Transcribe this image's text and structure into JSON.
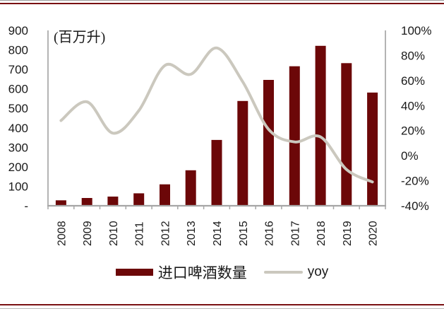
{
  "figure": {
    "unit_label": "(百万升)",
    "colors": {
      "bar": "#6C0708",
      "line": "#CBC8BE",
      "axis": "#A6A6A6",
      "text": "#1A1A1A",
      "rule": "#7A1113"
    }
  },
  "legend": {
    "items": [
      {
        "label": "进口啤酒数量",
        "type": "bar"
      },
      {
        "label": "yoy",
        "type": "line"
      }
    ]
  },
  "chart_data": {
    "type": "bar+line combo",
    "title": "",
    "categories": [
      "2008",
      "2009",
      "2010",
      "2011",
      "2012",
      "2013",
      "2014",
      "2015",
      "2016",
      "2017",
      "2018",
      "2019",
      "2020"
    ],
    "series": [
      {
        "name": "进口啤酒数量",
        "type": "bar",
        "axis": "left",
        "unit": "百万升",
        "values": [
          28,
          40,
          47,
          64,
          110,
          182,
          338,
          538,
          646,
          716,
          821,
          732,
          581
        ]
      },
      {
        "name": "yoy",
        "type": "line",
        "axis": "right",
        "unit": "%",
        "values": [
          28,
          43,
          18,
          36,
          72,
          65,
          86,
          59,
          21,
          11,
          15,
          -11,
          -21
        ]
      }
    ],
    "left_axis": {
      "label": "(百万升)",
      "min": 0,
      "max": 900,
      "step": 100,
      "tick_labels": [
        "-",
        "100",
        "200",
        "300",
        "400",
        "500",
        "600",
        "700",
        "800",
        "900"
      ]
    },
    "right_axis": {
      "min": -40,
      "max": 100,
      "step": 20,
      "tick_labels": [
        "-40%",
        "-20%",
        "0%",
        "20%",
        "40%",
        "60%",
        "80%",
        "100%"
      ]
    },
    "layout": {
      "grid": false,
      "legend_position": "bottom",
      "x_labels_rotated_deg": 90,
      "line_drawn_over_bars": true,
      "line_smoothed": true
    }
  }
}
